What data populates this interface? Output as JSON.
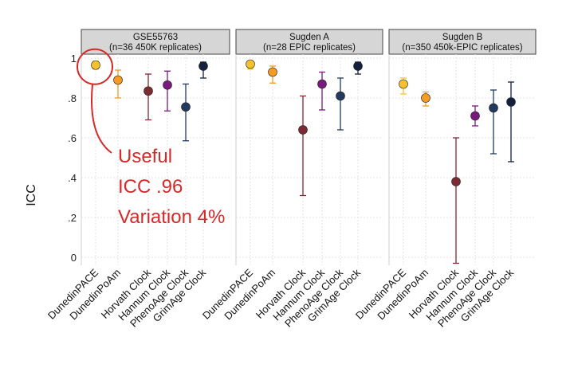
{
  "chart_data": {
    "type": "scatter",
    "ylabel": "ICC",
    "ylim": [
      -0.04,
      1.02
    ],
    "yticks": [
      0,
      0.2,
      0.4,
      0.6,
      0.8,
      1
    ],
    "ytick_labels": [
      "0",
      ".2",
      ".4",
      ".6",
      ".8",
      "1"
    ],
    "grid": true,
    "series_colors": {
      "DunedinPACE": "#f6c12f",
      "DunedinPoAm": "#f59a23",
      "Horvath Clock": "#7d2a33",
      "Hannum Clock": "#7a1a7e",
      "PhenoAge Clock": "#223a5e",
      "GrimAge Clock": "#13213f"
    },
    "panels": [
      {
        "title_line1": "GSE55763",
        "title_line2": "(n=36 450K replicates)",
        "categories": [
          "DunedinPACE",
          "DunedinPoAm",
          "Horvath Clock",
          "Hannum Clock",
          "PhenoAge Clock",
          "GrimAge Clock"
        ],
        "values": [
          0.965,
          0.89,
          0.835,
          0.865,
          0.755,
          0.96
        ],
        "lower": [
          0.945,
          0.8,
          0.69,
          0.735,
          0.585,
          0.9
        ],
        "upper": [
          0.985,
          0.94,
          0.92,
          0.935,
          0.87,
          0.98
        ]
      },
      {
        "title_line1": "Sugden A",
        "title_line2": "(n=28 EPIC replicates)",
        "categories": [
          "DunedinPACE",
          "DunedinPoAm",
          "Horvath Clock",
          "Hannum Clock",
          "PhenoAge Clock",
          "GrimAge Clock"
        ],
        "values": [
          0.97,
          0.93,
          0.64,
          0.87,
          0.81,
          0.96
        ],
        "lower": [
          0.945,
          0.875,
          0.31,
          0.74,
          0.64,
          0.92
        ],
        "upper": [
          0.985,
          0.96,
          0.81,
          0.93,
          0.9,
          0.98
        ]
      },
      {
        "title_line1": "Sugden B",
        "title_line2": "(n=350 450k-EPIC replicates)",
        "categories": [
          "DunedinPACE",
          "DunedinPoAm",
          "Horvath Clock",
          "Hannum Clock",
          "PhenoAge Clock",
          "GrimAge Clock"
        ],
        "values": [
          0.87,
          0.8,
          0.38,
          0.71,
          0.75,
          0.78
        ],
        "lower": [
          0.82,
          0.76,
          -0.03,
          0.66,
          0.52,
          0.48
        ],
        "upper": [
          0.9,
          0.83,
          0.6,
          0.76,
          0.84,
          0.88
        ]
      }
    ],
    "annotation": {
      "lines": [
        "Useful",
        "ICC .96",
        "Variation 4%"
      ],
      "color": "#d42a2a"
    }
  }
}
